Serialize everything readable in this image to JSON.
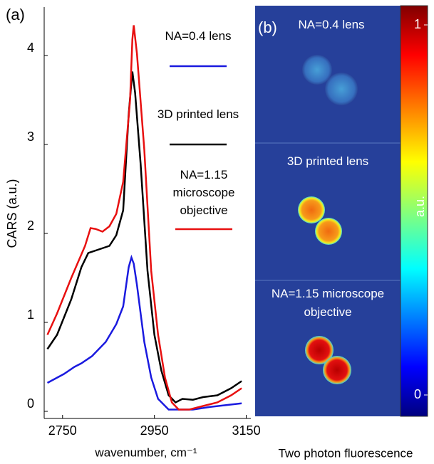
{
  "chart_data": [
    {
      "type": "line",
      "panel_label": "(a)",
      "xlabel": "wavenumber, cm⁻¹",
      "ylabel": "CARS (a.u.)",
      "xlim": [
        2710,
        3160
      ],
      "xticks": [
        2750,
        2950,
        3150
      ],
      "ylim": [
        -0.08,
        4.6
      ],
      "yticks": [
        0,
        1,
        2,
        3,
        4
      ],
      "series": [
        {
          "name": "NA=0.4 lens",
          "color": "#1a1adf",
          "x": [
            2717,
            2753,
            2776,
            2791,
            2814,
            2844,
            2867,
            2882,
            2894,
            2900,
            2905,
            2912,
            2928,
            2943,
            2958,
            2981,
            3003,
            3034,
            3072,
            3140
          ],
          "values": [
            0.32,
            0.42,
            0.5,
            0.54,
            0.62,
            0.78,
            0.98,
            1.18,
            1.62,
            1.73,
            1.66,
            1.42,
            0.78,
            0.38,
            0.14,
            0.02,
            0.02,
            0.02,
            0.05,
            0.09
          ]
        },
        {
          "name": "3D printed lens",
          "color": "#000000",
          "x": [
            2717,
            2738,
            2769,
            2791,
            2806,
            2829,
            2852,
            2867,
            2882,
            2894,
            2902,
            2908,
            2920,
            2935,
            2950,
            2965,
            2981,
            2996,
            3011,
            3034,
            3056,
            3087,
            3117,
            3140
          ],
          "values": [
            0.7,
            0.86,
            1.26,
            1.62,
            1.78,
            1.82,
            1.86,
            1.98,
            2.26,
            3.34,
            3.82,
            3.58,
            2.78,
            1.58,
            0.86,
            0.46,
            0.18,
            0.1,
            0.14,
            0.13,
            0.16,
            0.18,
            0.26,
            0.34
          ]
        },
        {
          "name": "NA=1.15 microscope objective",
          "color": "#e81010",
          "x": [
            2717,
            2738,
            2769,
            2799,
            2811,
            2822,
            2837,
            2852,
            2867,
            2882,
            2897,
            2902,
            2905,
            2912,
            2928,
            2943,
            2958,
            2973,
            2988,
            3003,
            3026,
            3056,
            3087,
            3117,
            3140
          ],
          "values": [
            0.86,
            1.1,
            1.5,
            1.86,
            2.06,
            2.05,
            2.02,
            2.08,
            2.22,
            2.58,
            3.5,
            4.18,
            4.34,
            4.02,
            2.94,
            1.58,
            0.86,
            0.38,
            0.1,
            0.02,
            0.02,
            0.06,
            0.1,
            0.18,
            0.26
          ]
        }
      ]
    },
    {
      "type": "image",
      "panel_label": "(b)",
      "panel_titles": [
        "NA=0.4 lens",
        "3D printed lens",
        "NA=1.15 microscope objective"
      ],
      "colorbar_label": "a.u.",
      "colorbar_lim": [
        0,
        1
      ],
      "colorbar_ticks": [
        0,
        1
      ],
      "caption": "Two photon fluorescence"
    }
  ]
}
